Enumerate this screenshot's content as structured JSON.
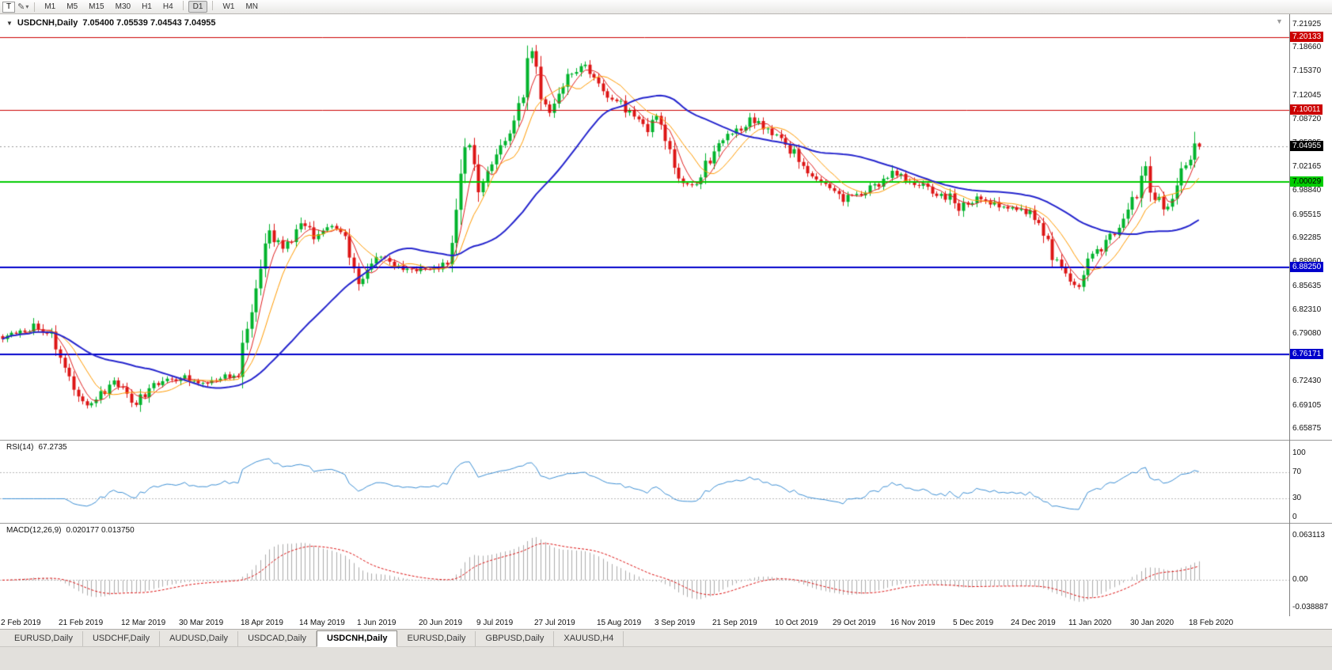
{
  "toolbar": {
    "icons": [
      {
        "name": "templates-button",
        "glyph": "T"
      },
      {
        "name": "draw-pencil-icon",
        "glyph": "✎"
      },
      {
        "name": "dropdown-caret-icon",
        "glyph": "▾"
      }
    ],
    "timeframes": [
      "M1",
      "M5",
      "M15",
      "M30",
      "H1",
      "H4",
      "D1",
      "W1",
      "MN"
    ],
    "active_timeframe": "D1"
  },
  "chart": {
    "title": {
      "caret": "▼",
      "symbol": "USDCNH,Daily",
      "ohlc": "7.05400 7.05539 7.04543 7.04955"
    },
    "shift_marker_glyph": "▼",
    "price_axis_ticks": [
      "7.21925",
      "7.18660",
      "7.15370",
      "7.12045",
      "7.08720",
      "7.05395",
      "7.02165",
      "6.98840",
      "6.95515",
      "6.92285",
      "6.88960",
      "6.85635",
      "6.82310",
      "6.79080",
      "6.75755",
      "6.72430",
      "6.69105",
      "6.65875"
    ],
    "hlines": [
      {
        "value": 7.20133,
        "label": "7.20133",
        "color": "#cc0000",
        "text": "#ffffff",
        "width": 1
      },
      {
        "value": 7.10011,
        "label": "7.10011",
        "color": "#cc0000",
        "text": "#ffffff",
        "width": 1
      },
      {
        "value": 7.00029,
        "label": "7.00029",
        "color": "#00cc00",
        "text": "#000000",
        "width": 2
      },
      {
        "value": 6.8825,
        "label": "6.88250",
        "color": "#0000cc",
        "text": "#ffffff",
        "width": 2
      },
      {
        "value": 6.76171,
        "label": "6.76171",
        "color": "#0000cc",
        "text": "#ffffff",
        "width": 2
      }
    ],
    "current_price": {
      "value": 7.04955,
      "label": "7.04955",
      "badge_color": "#000000",
      "text": "#ffffff"
    }
  },
  "rsi_panel": {
    "name": "RSI(14)",
    "value": "67.2735",
    "axis": [
      "100",
      "70",
      "30",
      "0"
    ],
    "line_color": "#3d8fd4",
    "level_color": "#b8b8b8"
  },
  "macd_panel": {
    "name": "MACD(12,26,9)",
    "values": "0.020177 0.013750",
    "axis": [
      "0.063113",
      "0.00",
      "-0.038887"
    ],
    "histogram_color": "#ababab",
    "signal_color": "#dd1111"
  },
  "tabs": {
    "items": [
      {
        "label": "EURUSD,Daily",
        "active": false
      },
      {
        "label": "USDCHF,Daily",
        "active": false
      },
      {
        "label": "AUDUSD,Daily",
        "active": false
      },
      {
        "label": "USDCAD,Daily",
        "active": false
      },
      {
        "label": "USDCNH,Daily",
        "active": true
      },
      {
        "label": "EURUSD,Daily",
        "active": false
      },
      {
        "label": "GBPUSD,Daily",
        "active": false
      },
      {
        "label": "XAUUSD,H4",
        "active": false
      }
    ]
  },
  "chart_data": {
    "type": "candlestick",
    "symbol": "USDCNH",
    "timeframe": "Daily",
    "bar_count": 270,
    "y_range": [
      6.6435,
      7.233
    ],
    "final_bar": {
      "open": 7.054,
      "high": 7.05539,
      "low": 7.04543,
      "close": 7.04955
    },
    "colors": {
      "up": "#00b32c",
      "down": "#dd1515",
      "bid_line": "#999999"
    },
    "price_anchors": [
      [
        0,
        6.785
      ],
      [
        4,
        6.792
      ],
      [
        7,
        6.801
      ],
      [
        9,
        6.789
      ],
      [
        11,
        6.791
      ],
      [
        13,
        6.762
      ],
      [
        15,
        6.724
      ],
      [
        17,
        6.7
      ],
      [
        19,
        6.692
      ],
      [
        22,
        6.707
      ],
      [
        25,
        6.722
      ],
      [
        27,
        6.713
      ],
      [
        29,
        6.692
      ],
      [
        31,
        6.704
      ],
      [
        34,
        6.719
      ],
      [
        38,
        6.727
      ],
      [
        41,
        6.731
      ],
      [
        44,
        6.722
      ],
      [
        47,
        6.725
      ],
      [
        50,
        6.731
      ],
      [
        53,
        6.736
      ],
      [
        54,
        6.779
      ],
      [
        55,
        6.801
      ],
      [
        56,
        6.829
      ],
      [
        57,
        6.859
      ],
      [
        58,
        6.889
      ],
      [
        59,
        6.913
      ],
      [
        60,
        6.929
      ],
      [
        62,
        6.916
      ],
      [
        64,
        6.909
      ],
      [
        66,
        6.926
      ],
      [
        68,
        6.944
      ],
      [
        69,
        6.931
      ],
      [
        70,
        6.918
      ],
      [
        72,
        6.931
      ],
      [
        73,
        6.941
      ],
      [
        75,
        6.937
      ],
      [
        77,
        6.921
      ],
      [
        78,
        6.901
      ],
      [
        79,
        6.879
      ],
      [
        80,
        6.863
      ],
      [
        81,
        6.873
      ],
      [
        83,
        6.891
      ],
      [
        85,
        6.898
      ],
      [
        87,
        6.887
      ],
      [
        90,
        6.881
      ],
      [
        93,
        6.877
      ],
      [
        96,
        6.88
      ],
      [
        99,
        6.884
      ],
      [
        100,
        6.888
      ],
      [
        101,
        6.921
      ],
      [
        102,
        6.963
      ],
      [
        103,
        7.011
      ],
      [
        104,
        7.049
      ],
      [
        105,
        7.051
      ],
      [
        106,
        7.021
      ],
      [
        107,
        6.993
      ],
      [
        108,
        7.006
      ],
      [
        109,
        7.023
      ],
      [
        111,
        7.041
      ],
      [
        113,
        7.056
      ],
      [
        115,
        7.079
      ],
      [
        117,
        7.126
      ],
      [
        118,
        7.166
      ],
      [
        119,
        7.181
      ],
      [
        120,
        7.156
      ],
      [
        121,
        7.123
      ],
      [
        123,
        7.104
      ],
      [
        125,
        7.129
      ],
      [
        127,
        7.147
      ],
      [
        129,
        7.152
      ],
      [
        131,
        7.161
      ],
      [
        133,
        7.146
      ],
      [
        136,
        7.123
      ],
      [
        139,
        7.106
      ],
      [
        142,
        7.086
      ],
      [
        145,
        7.073
      ],
      [
        147,
        7.089
      ],
      [
        149,
        7.056
      ],
      [
        151,
        7.023
      ],
      [
        153,
        7.001
      ],
      [
        155,
        6.997
      ],
      [
        157,
        7.013
      ],
      [
        159,
        7.031
      ],
      [
        161,
        7.049
      ],
      [
        163,
        7.066
      ],
      [
        165,
        7.072
      ],
      [
        167,
        7.078
      ],
      [
        169,
        7.089
      ],
      [
        171,
        7.076
      ],
      [
        173,
        7.069
      ],
      [
        175,
        7.061
      ],
      [
        177,
        7.046
      ],
      [
        179,
        7.029
      ],
      [
        181,
        7.013
      ],
      [
        183,
        7.003
      ],
      [
        185,
        6.997
      ],
      [
        187,
        6.991
      ],
      [
        189,
        6.977
      ],
      [
        191,
        6.981
      ],
      [
        193,
        6.985
      ],
      [
        195,
        6.991
      ],
      [
        197,
        6.997
      ],
      [
        199,
        7.005
      ],
      [
        201,
        7.015
      ],
      [
        203,
        7.006
      ],
      [
        205,
        6.999
      ],
      [
        207,
        6.993
      ],
      [
        209,
        6.986
      ],
      [
        211,
        6.981
      ],
      [
        213,
        6.977
      ],
      [
        215,
        6.961
      ],
      [
        217,
        6.973
      ],
      [
        219,
        6.977
      ],
      [
        221,
        6.973
      ],
      [
        223,
        6.97
      ],
      [
        225,
        6.967
      ],
      [
        227,
        6.964
      ],
      [
        229,
        6.961
      ],
      [
        231,
        6.958
      ],
      [
        232,
        6.953
      ],
      [
        233,
        6.939
      ],
      [
        234,
        6.926
      ],
      [
        235,
        6.913
      ],
      [
        236,
        6.901
      ],
      [
        237,
        6.893
      ],
      [
        238,
        6.883
      ],
      [
        239,
        6.876
      ],
      [
        240,
        6.869
      ],
      [
        241,
        6.861
      ],
      [
        242,
        6.858
      ],
      [
        243,
        6.873
      ],
      [
        244,
        6.887
      ],
      [
        246,
        6.901
      ],
      [
        248,
        6.915
      ],
      [
        250,
        6.931
      ],
      [
        252,
        6.957
      ],
      [
        254,
        6.973
      ],
      [
        255,
        6.986
      ],
      [
        256,
        7.001
      ],
      [
        257,
        7.019
      ],
      [
        258,
        6.993
      ],
      [
        259,
        6.979
      ],
      [
        260,
        6.971
      ],
      [
        261,
        6.963
      ],
      [
        262,
        6.959
      ],
      [
        263,
        6.976
      ],
      [
        264,
        6.993
      ],
      [
        265,
        7.011
      ],
      [
        266,
        7.024
      ],
      [
        267,
        7.032
      ],
      [
        268,
        7.054
      ],
      [
        269,
        7.04955
      ]
    ],
    "x_labels": [
      {
        "bar": 0,
        "label": "2 Feb 2019"
      },
      {
        "bar": 13,
        "label": "21 Feb 2019"
      },
      {
        "bar": 27,
        "label": "12 Mar 2019"
      },
      {
        "bar": 40,
        "label": "30 Mar 2019"
      },
      {
        "bar": 54,
        "label": "18 Apr 2019"
      },
      {
        "bar": 67,
        "label": "14 May 2019"
      },
      {
        "bar": 80,
        "label": "1 Jun 2019"
      },
      {
        "bar": 94,
        "label": "20 Jun 2019"
      },
      {
        "bar": 107,
        "label": "9 Jul 2019"
      },
      {
        "bar": 120,
        "label": "27 Jul 2019"
      },
      {
        "bar": 134,
        "label": "15 Aug 2019"
      },
      {
        "bar": 147,
        "label": "3 Sep 2019"
      },
      {
        "bar": 160,
        "label": "21 Sep 2019"
      },
      {
        "bar": 174,
        "label": "10 Oct 2019"
      },
      {
        "bar": 187,
        "label": "29 Oct 2019"
      },
      {
        "bar": 200,
        "label": "16 Nov 2019"
      },
      {
        "bar": 214,
        "label": "5 Dec 2019"
      },
      {
        "bar": 227,
        "label": "24 Dec 2019"
      },
      {
        "bar": 240,
        "label": "11 Jan 2020"
      },
      {
        "bar": 254,
        "label": "30 Jan 2020"
      },
      {
        "bar": 267,
        "label": "18 Feb 2020"
      }
    ],
    "indicators": {
      "moving_averages": [
        {
          "type": "SMA",
          "period": 5,
          "color": "#e02020",
          "width": 1
        },
        {
          "type": "SMA",
          "period": 10,
          "color": "#ff9a00",
          "width": 1
        },
        {
          "type": "SMA",
          "period": 34,
          "color": "#2525cd",
          "width": 2
        }
      ],
      "rsi": {
        "period": 14,
        "current": 67.2735,
        "levels": [
          70,
          30
        ],
        "range": [
          0,
          100
        ]
      },
      "macd": {
        "fast": 12,
        "slow": 26,
        "signal": 9,
        "current": [
          0.020177,
          0.01375
        ]
      }
    }
  }
}
